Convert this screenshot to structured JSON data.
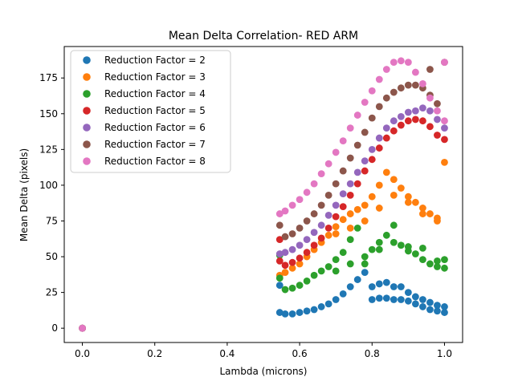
{
  "chart_data": {
    "type": "scatter",
    "title": "Mean Delta Correlation- RED ARM",
    "xlabel": "Lambda (microns)",
    "ylabel": "Mean Delta (pixels)",
    "xlim": [
      -0.05,
      1.05
    ],
    "ylim": [
      -10,
      197
    ],
    "xticks": [
      0.0,
      0.2,
      0.4,
      0.6,
      0.8,
      1.0
    ],
    "xtick_labels": [
      "0.0",
      "0.2",
      "0.4",
      "0.6",
      "0.8",
      "1.0"
    ],
    "yticks": [
      0,
      25,
      50,
      75,
      100,
      125,
      150,
      175
    ],
    "ytick_labels": [
      "0",
      "25",
      "50",
      "75",
      "100",
      "125",
      "150",
      "175"
    ],
    "grid": false,
    "legend_position": "upper-left",
    "legend": [
      {
        "label": "Reduction Factor = 2",
        "color": "#1f77b4"
      },
      {
        "label": "Reduction Factor = 3",
        "color": "#ff7f0e"
      },
      {
        "label": "Reduction Factor = 4",
        "color": "#2ca02c"
      },
      {
        "label": "Reduction Factor = 5",
        "color": "#d62728"
      },
      {
        "label": "Reduction Factor = 6",
        "color": "#9467bd"
      },
      {
        "label": "Reduction Factor = 7",
        "color": "#8c564b"
      },
      {
        "label": "Reduction Factor = 8",
        "color": "#e377c2"
      }
    ],
    "series": [
      {
        "color": "#1f77b4",
        "points": [
          [
            0.0,
            0
          ],
          [
            0.545,
            30
          ],
          [
            0.545,
            11
          ],
          [
            0.56,
            10
          ],
          [
            0.58,
            10
          ],
          [
            0.6,
            11
          ],
          [
            0.62,
            12
          ],
          [
            0.64,
            13
          ],
          [
            0.66,
            15
          ],
          [
            0.68,
            17
          ],
          [
            0.7,
            20
          ],
          [
            0.72,
            24
          ],
          [
            0.74,
            29
          ],
          [
            0.76,
            34
          ],
          [
            0.78,
            39
          ],
          [
            0.8,
            20
          ],
          [
            0.82,
            21
          ],
          [
            0.84,
            21
          ],
          [
            0.86,
            20
          ],
          [
            0.88,
            20
          ],
          [
            0.9,
            19
          ],
          [
            0.92,
            17
          ],
          [
            0.94,
            15
          ],
          [
            0.96,
            13
          ],
          [
            0.98,
            12
          ],
          [
            1.0,
            11
          ],
          [
            0.8,
            29
          ],
          [
            0.82,
            31
          ],
          [
            0.84,
            32
          ],
          [
            0.86,
            29
          ],
          [
            0.88,
            29
          ],
          [
            0.9,
            25
          ],
          [
            0.92,
            22
          ],
          [
            0.94,
            20
          ],
          [
            0.96,
            18
          ],
          [
            0.98,
            16
          ],
          [
            1.0,
            15
          ]
        ]
      },
      {
        "color": "#ff7f0e",
        "points": [
          [
            0.0,
            0
          ],
          [
            0.545,
            37
          ],
          [
            0.56,
            39
          ],
          [
            0.58,
            42
          ],
          [
            0.6,
            45
          ],
          [
            0.62,
            50
          ],
          [
            0.64,
            55
          ],
          [
            0.66,
            60
          ],
          [
            0.68,
            65
          ],
          [
            0.7,
            71
          ],
          [
            0.72,
            76
          ],
          [
            0.74,
            80
          ],
          [
            0.76,
            83
          ],
          [
            0.78,
            86
          ],
          [
            0.8,
            92
          ],
          [
            0.82,
            100
          ],
          [
            0.84,
            109
          ],
          [
            0.86,
            104
          ],
          [
            0.88,
            98
          ],
          [
            0.9,
            92
          ],
          [
            0.92,
            88
          ],
          [
            0.94,
            84
          ],
          [
            0.96,
            80
          ],
          [
            0.98,
            77
          ],
          [
            1.0,
            116
          ],
          [
            0.7,
            66
          ],
          [
            0.74,
            70
          ],
          [
            0.78,
            75
          ],
          [
            0.82,
            84
          ],
          [
            0.86,
            93
          ],
          [
            0.9,
            88
          ],
          [
            0.94,
            80
          ],
          [
            0.98,
            75
          ]
        ]
      },
      {
        "color": "#2ca02c",
        "points": [
          [
            0.0,
            0
          ],
          [
            0.545,
            51
          ],
          [
            0.545,
            35
          ],
          [
            0.56,
            27
          ],
          [
            0.58,
            28
          ],
          [
            0.6,
            30
          ],
          [
            0.62,
            33
          ],
          [
            0.64,
            37
          ],
          [
            0.66,
            40
          ],
          [
            0.68,
            43
          ],
          [
            0.7,
            48
          ],
          [
            0.72,
            53
          ],
          [
            0.74,
            62
          ],
          [
            0.76,
            70
          ],
          [
            0.78,
            45
          ],
          [
            0.8,
            55
          ],
          [
            0.82,
            60
          ],
          [
            0.84,
            65
          ],
          [
            0.86,
            72
          ],
          [
            0.88,
            58
          ],
          [
            0.9,
            57
          ],
          [
            0.92,
            52
          ],
          [
            0.94,
            48
          ],
          [
            0.96,
            45
          ],
          [
            0.98,
            43
          ],
          [
            1.0,
            42
          ],
          [
            0.7,
            40
          ],
          [
            0.74,
            45
          ],
          [
            0.78,
            50
          ],
          [
            0.82,
            55
          ],
          [
            0.86,
            60
          ],
          [
            0.9,
            54
          ],
          [
            0.94,
            56
          ],
          [
            0.98,
            47
          ],
          [
            1.0,
            48
          ]
        ]
      },
      {
        "color": "#d62728",
        "points": [
          [
            0.0,
            0
          ],
          [
            0.545,
            62
          ],
          [
            0.545,
            47
          ],
          [
            0.56,
            44
          ],
          [
            0.58,
            46
          ],
          [
            0.6,
            49
          ],
          [
            0.62,
            53
          ],
          [
            0.64,
            58
          ],
          [
            0.66,
            63
          ],
          [
            0.68,
            70
          ],
          [
            0.7,
            78
          ],
          [
            0.72,
            85
          ],
          [
            0.74,
            93
          ],
          [
            0.76,
            101
          ],
          [
            0.78,
            110
          ],
          [
            0.8,
            118
          ],
          [
            0.82,
            126
          ],
          [
            0.84,
            133
          ],
          [
            0.86,
            138
          ],
          [
            0.88,
            142
          ],
          [
            0.9,
            145
          ],
          [
            0.92,
            146
          ],
          [
            0.94,
            145
          ],
          [
            0.96,
            141
          ],
          [
            0.98,
            135
          ],
          [
            1.0,
            132
          ]
        ]
      },
      {
        "color": "#9467bd",
        "points": [
          [
            0.0,
            0
          ],
          [
            0.545,
            52
          ],
          [
            0.56,
            53
          ],
          [
            0.58,
            55
          ],
          [
            0.6,
            58
          ],
          [
            0.62,
            62
          ],
          [
            0.64,
            67
          ],
          [
            0.66,
            72
          ],
          [
            0.68,
            79
          ],
          [
            0.7,
            86
          ],
          [
            0.72,
            94
          ],
          [
            0.74,
            101
          ],
          [
            0.76,
            109
          ],
          [
            0.78,
            117
          ],
          [
            0.8,
            125
          ],
          [
            0.82,
            133
          ],
          [
            0.84,
            140
          ],
          [
            0.86,
            145
          ],
          [
            0.88,
            148
          ],
          [
            0.9,
            151
          ],
          [
            0.92,
            152
          ],
          [
            0.94,
            154
          ],
          [
            0.96,
            152
          ],
          [
            0.98,
            146
          ],
          [
            1.0,
            140
          ]
        ]
      },
      {
        "color": "#8c564b",
        "points": [
          [
            0.0,
            0
          ],
          [
            0.545,
            72
          ],
          [
            0.56,
            64
          ],
          [
            0.58,
            66
          ],
          [
            0.6,
            70
          ],
          [
            0.62,
            75
          ],
          [
            0.64,
            80
          ],
          [
            0.66,
            86
          ],
          [
            0.68,
            93
          ],
          [
            0.7,
            101
          ],
          [
            0.72,
            110
          ],
          [
            0.74,
            119
          ],
          [
            0.76,
            128
          ],
          [
            0.78,
            137
          ],
          [
            0.8,
            147
          ],
          [
            0.82,
            155
          ],
          [
            0.84,
            161
          ],
          [
            0.86,
            165
          ],
          [
            0.88,
            168
          ],
          [
            0.9,
            170
          ],
          [
            0.92,
            170
          ],
          [
            0.94,
            168
          ],
          [
            0.96,
            163
          ],
          [
            0.98,
            157
          ],
          [
            1.0,
            186
          ],
          [
            0.96,
            181
          ]
        ]
      },
      {
        "color": "#e377c2",
        "points": [
          [
            0.0,
            0
          ],
          [
            0.545,
            80
          ],
          [
            0.56,
            82
          ],
          [
            0.58,
            86
          ],
          [
            0.6,
            90
          ],
          [
            0.62,
            95
          ],
          [
            0.64,
            101
          ],
          [
            0.66,
            108
          ],
          [
            0.68,
            115
          ],
          [
            0.7,
            123
          ],
          [
            0.72,
            131
          ],
          [
            0.74,
            140
          ],
          [
            0.76,
            149
          ],
          [
            0.78,
            158
          ],
          [
            0.8,
            166
          ],
          [
            0.82,
            174
          ],
          [
            0.84,
            181
          ],
          [
            0.86,
            186
          ],
          [
            0.88,
            187
          ],
          [
            0.9,
            186
          ],
          [
            0.92,
            179
          ],
          [
            0.94,
            171
          ],
          [
            0.96,
            161
          ],
          [
            0.98,
            152
          ],
          [
            1.0,
            186
          ],
          [
            1.0,
            145
          ]
        ]
      }
    ]
  }
}
